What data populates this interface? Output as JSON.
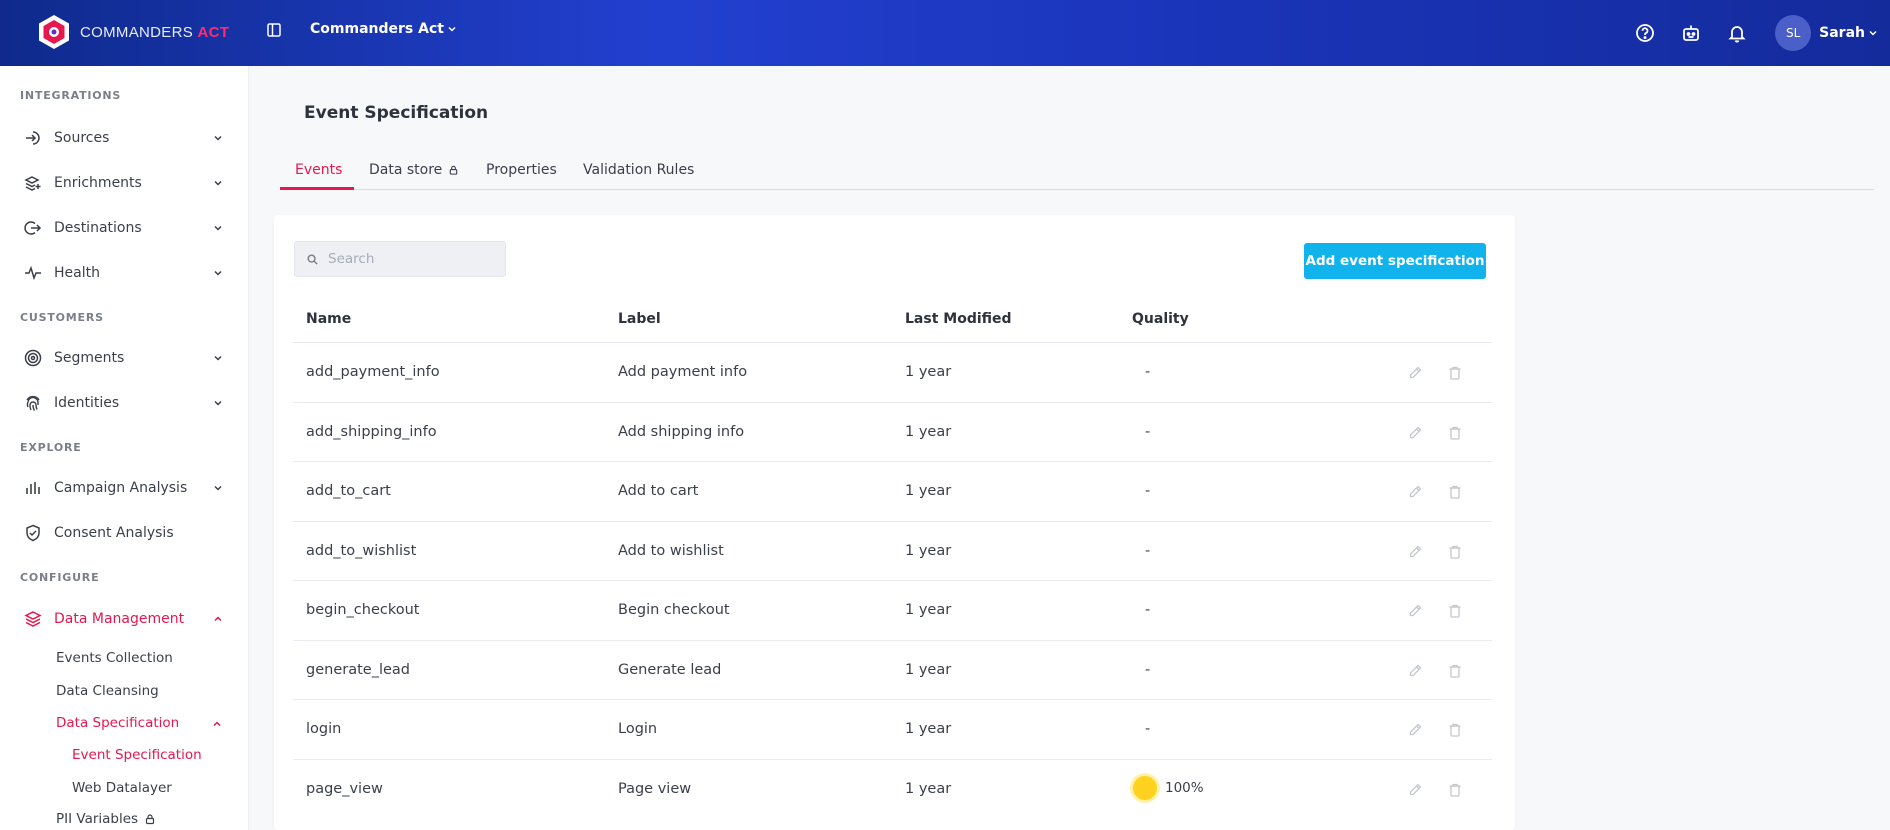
{
  "brand": {
    "name_prefix": "COMMANDERS",
    "name_suffix": "ACT",
    "accent": "#ff2d6f"
  },
  "header": {
    "org": "Commanders Act",
    "user_initials": "SL",
    "user_name": "Sarah",
    "icons": [
      "help-circle-icon",
      "robot-icon",
      "bell-icon"
    ]
  },
  "sidebar": {
    "sections": {
      "integrations": "INTEGRATIONS",
      "customers": "CUSTOMERS",
      "explore": "EXPLORE",
      "configure": "CONFIGURE"
    },
    "items": {
      "sources": "Sources",
      "enrichments": "Enrichments",
      "destinations": "Destinations",
      "health": "Health",
      "segments": "Segments",
      "identities": "Identities",
      "campaign_analysis": "Campaign Analysis",
      "consent_analysis": "Consent Analysis",
      "data_management": "Data Management",
      "events_collection": "Events Collection",
      "data_cleansing": "Data Cleansing",
      "data_specification": "Data Specification",
      "event_specification": "Event Specification",
      "web_datalayer": "Web Datalayer",
      "pii_variables": "PII Variables"
    }
  },
  "page": {
    "title": "Event Specification",
    "tabs": [
      "Events",
      "Data store",
      "Properties",
      "Validation Rules"
    ],
    "active_tab": "Events",
    "search_placeholder": "Search",
    "add_button": "Add event specification",
    "columns": [
      "Name",
      "Label",
      "Last Modified",
      "Quality"
    ],
    "rows": [
      {
        "name": "add_payment_info",
        "label": "Add payment info",
        "modified": "1 year",
        "quality": "-"
      },
      {
        "name": "add_shipping_info",
        "label": "Add shipping info",
        "modified": "1 year",
        "quality": "-"
      },
      {
        "name": "add_to_cart",
        "label": "Add to cart",
        "modified": "1 year",
        "quality": "-"
      },
      {
        "name": "add_to_wishlist",
        "label": "Add to wishlist",
        "modified": "1 year",
        "quality": "-"
      },
      {
        "name": "begin_checkout",
        "label": "Begin checkout",
        "modified": "1 year",
        "quality": "-"
      },
      {
        "name": "generate_lead",
        "label": "Generate lead",
        "modified": "1 year",
        "quality": "-"
      },
      {
        "name": "login",
        "label": "Login",
        "modified": "1 year",
        "quality": "-"
      },
      {
        "name": "page_view",
        "label": "Page view",
        "modified": "1 year",
        "quality": "100%"
      }
    ]
  },
  "colors": {
    "active": "#e6174f",
    "button": "#10b3ec",
    "quality_dot": "#ffd21f"
  }
}
